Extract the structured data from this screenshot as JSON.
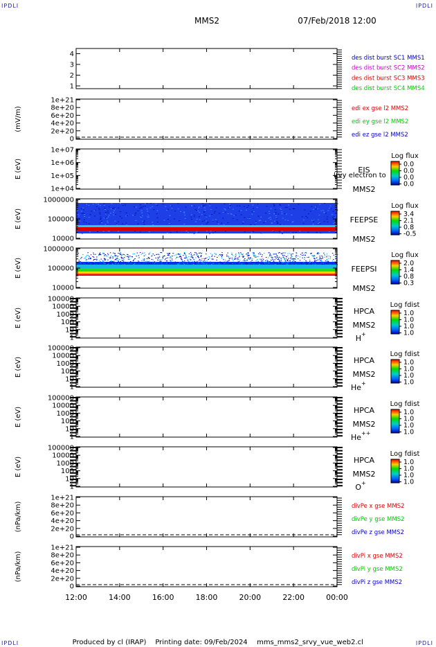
{
  "header": {
    "corner_label": "IPDLI",
    "spacecraft": "MMS2",
    "date": "07/Feb/2018 12:00"
  },
  "footer": {
    "produced_by": "Produced by cl (IRAP)",
    "printing_date": "Printing date: 09/Feb/2024",
    "filename": "mms_mms2_srvy_vue_web2.cl"
  },
  "colors": {
    "blue": "#0000cc",
    "magenta": "#cc00cc",
    "red": "#dd0000",
    "green": "#00cc00"
  },
  "chart_data": [
    {
      "type": "line",
      "id": "spacecraft",
      "yticks": [
        "1",
        "2",
        "3",
        "4"
      ],
      "legend": [
        {
          "name": "des dist burst SC1 MMS1",
          "color": "#0000cc"
        },
        {
          "name": "des dist burst SC2 MMS2",
          "color": "#cc00cc"
        },
        {
          "name": "des dist burst SC3 MMS3",
          "color": "#dd0000"
        },
        {
          "name": "des dist burst SC4 MMS4",
          "color": "#00cc00"
        }
      ]
    },
    {
      "type": "line",
      "id": "edi",
      "ylabel": "(mV/m)",
      "yticks": [
        "0",
        "2e+20",
        "4e+20",
        "6e+20",
        "8e+20",
        "1e+21"
      ],
      "legend": [
        {
          "name": "edi ex gse l2 MMS2",
          "color": "#dd0000"
        },
        {
          "name": "edi ey gse l2 MMS2",
          "color": "#00cc00"
        },
        {
          "name": "edi ez gse l2 MMS2",
          "color": "#0000cc"
        }
      ]
    },
    {
      "type": "heatmap",
      "id": "eis",
      "ylabel": "E (eV)",
      "yticks": [
        "1e+04",
        "1e+05",
        "1e+06",
        "1e+07"
      ],
      "instrument": [
        "EIS",
        "MMS2"
      ],
      "overlay_text": "l(vy electron to",
      "colorbar": {
        "title": "Log flux",
        "values": [
          "0.0",
          "0.0",
          "0.0",
          "0.0"
        ]
      }
    },
    {
      "type": "heatmap",
      "id": "feepse",
      "ylabel": "E (eV)",
      "yticks": [
        "10000",
        "100000",
        "1000000"
      ],
      "instrument": [
        "FEEPSE",
        "MMS2"
      ],
      "colorbar": {
        "title": "Log flux",
        "values": [
          "3.4",
          "2.1",
          "0.8",
          "-0.5"
        ]
      }
    },
    {
      "type": "heatmap",
      "id": "feepsi",
      "ylabel": "E (eV)",
      "yticks": [
        "10000",
        "100000",
        "1000000"
      ],
      "instrument": [
        "FEEPSI",
        "MMS2"
      ],
      "colorbar": {
        "title": "Log flux",
        "values": [
          "2.0",
          "1.4",
          "0.8",
          "0.3"
        ]
      }
    },
    {
      "type": "heatmap",
      "id": "hpca_h",
      "ylabel": "E (eV)",
      "yticks": [
        "1",
        "10",
        "100",
        "1000",
        "10000",
        "100000"
      ],
      "instrument": [
        "HPCA",
        "MMS2",
        "H",
        "+"
      ],
      "colorbar": {
        "title": "Log fdist",
        "values": [
          "1.0",
          "1.0",
          "1.0",
          "1.0"
        ]
      }
    },
    {
      "type": "heatmap",
      "id": "hpca_he",
      "ylabel": "E (eV)",
      "yticks": [
        "1",
        "10",
        "100",
        "1000",
        "10000",
        "100000"
      ],
      "instrument": [
        "HPCA",
        "MMS2",
        "He",
        "+"
      ],
      "colorbar": {
        "title": "Log fdist",
        "values": [
          "1.0",
          "1.0",
          "1.0",
          "1.0"
        ]
      }
    },
    {
      "type": "heatmap",
      "id": "hpca_he2",
      "ylabel": "E (eV)",
      "yticks": [
        "1",
        "10",
        "100",
        "1000",
        "10000",
        "100000"
      ],
      "instrument": [
        "HPCA",
        "MMS2",
        "He",
        "++"
      ],
      "colorbar": {
        "title": "Log fdist",
        "values": [
          "1.0",
          "1.0",
          "1.0",
          "1.0"
        ]
      }
    },
    {
      "type": "heatmap",
      "id": "hpca_o",
      "ylabel": "E (eV)",
      "yticks": [
        "1",
        "10",
        "100",
        "1000",
        "10000",
        "100000"
      ],
      "instrument": [
        "HPCA",
        "MMS2",
        "O",
        "+"
      ],
      "colorbar": {
        "title": "Log fdist",
        "values": [
          "1.0",
          "1.0",
          "1.0",
          "1.0"
        ]
      }
    },
    {
      "type": "line",
      "id": "divpe",
      "ylabel": "(nPa/km)",
      "yticks": [
        "0",
        "2e+20",
        "4e+20",
        "6e+20",
        "8e+20",
        "1e+21"
      ],
      "legend": [
        {
          "name": "divPe x gse MMS2",
          "color": "#dd0000"
        },
        {
          "name": "divPe y gse MMS2",
          "color": "#00cc00"
        },
        {
          "name": "divPe z gse MMS2",
          "color": "#0000cc"
        }
      ]
    },
    {
      "type": "line",
      "id": "divpi",
      "ylabel": "(nPa/km)",
      "yticks": [
        "0",
        "2e+20",
        "4e+20",
        "6e+20",
        "8e+20",
        "1e+21"
      ],
      "legend": [
        {
          "name": "divPi x gse MMS2",
          "color": "#dd0000"
        },
        {
          "name": "divPi y gse MMS2",
          "color": "#00cc00"
        },
        {
          "name": "divPi z gse MMS2",
          "color": "#0000cc"
        }
      ]
    }
  ],
  "time_axis": {
    "ticks": [
      "12:00",
      "14:00",
      "16:00",
      "18:00",
      "20:00",
      "22:00",
      "00:00"
    ]
  }
}
